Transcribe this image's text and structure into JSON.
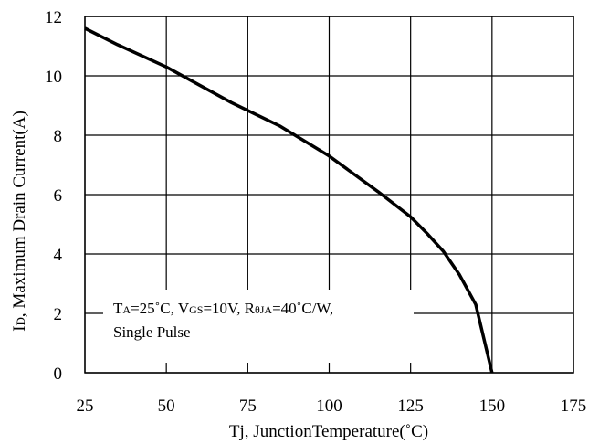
{
  "chart_data": {
    "type": "line",
    "xlabel": "Tj, JunctionTemperature(˚C)",
    "ylabel_main": "I",
    "ylabel_sub": "D",
    "ylabel_rest": ", Maximum Drain Current(A)",
    "xlim": [
      25,
      175
    ],
    "ylim": [
      0,
      12
    ],
    "x_ticks": [
      "25",
      "50",
      "75",
      "100",
      "125",
      "150",
      "175"
    ],
    "y_ticks": [
      "0",
      "2",
      "4",
      "6",
      "8",
      "10",
      "12"
    ],
    "grid": true,
    "series": [
      {
        "x": [
          25,
          35,
          50,
          60,
          70,
          85,
          100,
          115,
          125,
          130,
          135,
          140,
          145,
          150
        ],
        "y": [
          11.6,
          11.05,
          10.3,
          9.7,
          9.1,
          8.3,
          7.3,
          6.1,
          5.25,
          4.7,
          4.1,
          3.3,
          2.3,
          0
        ]
      }
    ],
    "annotation": {
      "line1": [
        {
          "text": "T",
          "sub": false
        },
        {
          "text": "A",
          "sub": true
        },
        {
          "text": "=25˚C, V",
          "sub": false
        },
        {
          "text": "GS",
          "sub": true
        },
        {
          "text": "=10V, R",
          "sub": false
        },
        {
          "text": "θJA",
          "sub": true
        },
        {
          "text": "=40˚C/W,",
          "sub": false
        }
      ],
      "line2": "Single Pulse"
    },
    "colors": {
      "line": "#000000",
      "grid": "#000000",
      "background": "#ffffff"
    }
  }
}
